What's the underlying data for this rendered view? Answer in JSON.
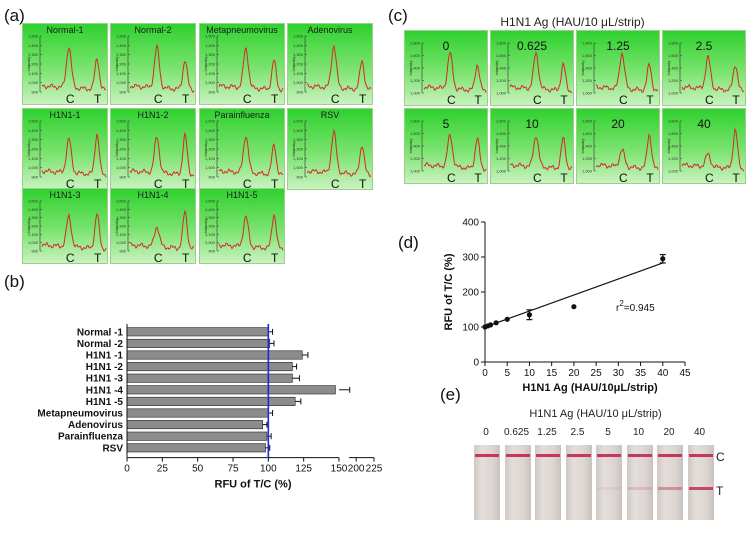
{
  "panel_a": {
    "letter": "(a)",
    "tiles": [
      {
        "title": "Normal-1",
        "c": 0.85,
        "t": 0.65
      },
      {
        "title": "Normal-2",
        "c": 0.85,
        "t": 0.62
      },
      {
        "title": "Metapneumovirus",
        "c": 0.82,
        "t": 0.6
      },
      {
        "title": "Adenovirus",
        "c": 0.88,
        "t": 0.6
      },
      {
        "title": "H1N1-1",
        "c": 0.7,
        "t": 0.85
      },
      {
        "title": "H1N1-2",
        "c": 0.75,
        "t": 0.82
      },
      {
        "title": "Parainfluenza",
        "c": 0.78,
        "t": 0.62
      },
      {
        "title": "RSV",
        "c": 0.85,
        "t": 0.62
      },
      {
        "title": "H1N1-3",
        "c": 0.72,
        "t": 0.82
      },
      {
        "title": "H1N1-4",
        "c": 0.48,
        "t": 0.88
      },
      {
        "title": "H1N1-5",
        "c": 0.72,
        "t": 0.82
      }
    ],
    "yticks": [
      "1,500",
      "1,400",
      "1,300",
      "1,200",
      "1,100",
      "1,000",
      "900"
    ],
    "ylabel": "Intensity",
    "c_label": "C",
    "t_label": "T"
  },
  "panel_b": {
    "letter": "(b)",
    "chart_data": {
      "type": "bar",
      "orientation": "horizontal",
      "categories": [
        "Normal -1",
        "Normal -2",
        "H1N1 -1",
        "H1N1 -2",
        "H1N1 -3",
        "H1N1 -4",
        "H1N1 -5",
        "Metapneumovirus",
        "Adenovirus",
        "Parainfluenza",
        "RSV"
      ],
      "values": [
        100,
        101,
        124,
        117,
        117,
        185,
        119,
        100,
        96,
        99,
        98
      ],
      "errors": [
        3,
        3,
        4,
        3,
        5,
        6,
        4,
        3,
        3,
        3,
        3
      ],
      "reference_line": 100,
      "reference_color": "#1f2bd6",
      "bar_color": "#8c8c8c",
      "xlabel": "RFU of T/C (%)",
      "xticks": [
        "0",
        "25",
        "50",
        "75",
        "100",
        "125",
        "150",
        "200",
        "225"
      ],
      "axis_break": [
        150,
        190
      ]
    }
  },
  "panel_c": {
    "letter": "(c)",
    "title": "H1N1 Ag (HAU/10 μL/strip)",
    "tiles": [
      {
        "num": "0",
        "c": 0.85,
        "t": 0.62
      },
      {
        "num": "0.625",
        "c": 0.85,
        "t": 0.62
      },
      {
        "num": "1.25",
        "c": 0.85,
        "t": 0.62
      },
      {
        "num": "2.5",
        "c": 0.75,
        "t": 0.62
      },
      {
        "num": "5",
        "c": 0.75,
        "t": 0.72
      },
      {
        "num": "10",
        "c": 0.75,
        "t": 0.72
      },
      {
        "num": "20",
        "c": 0.4,
        "t": 0.82
      },
      {
        "num": "40",
        "c": 0.3,
        "t": 0.92
      }
    ],
    "yticks": [
      "1,800",
      "1,600",
      "1,400",
      "1,200",
      "1,000"
    ],
    "ylabel": "Intensity",
    "c_label": "C",
    "t_label": "T"
  },
  "panel_d": {
    "letter": "(d)",
    "chart_data": {
      "type": "scatter",
      "x": [
        0,
        0.625,
        1.25,
        2.5,
        5,
        10,
        20,
        40
      ],
      "y": [
        100,
        103,
        106,
        112,
        122,
        135,
        158,
        295
      ],
      "errors": [
        3,
        3,
        3,
        4,
        4,
        14,
        3,
        12
      ],
      "fit_line": {
        "x": [
          0,
          40
        ],
        "y": [
          100,
          283
        ]
      },
      "xlabel": "H1N1 Ag (HAU/10μL/strip)",
      "ylabel": "RFU of T/C (%)",
      "xlim": [
        0,
        45
      ],
      "ylim": [
        0,
        400
      ],
      "xticks": [
        "0",
        "5",
        "10",
        "15",
        "20",
        "25",
        "30",
        "35",
        "40",
        "45"
      ],
      "yticks": [
        "0",
        "100",
        "200",
        "300",
        "400"
      ],
      "annotation_base": "r",
      "annotation_exp": "2",
      "annotation_value": "=0.945"
    }
  },
  "panel_e": {
    "letter": "(e)",
    "title": "H1N1 Ag (HAU/10 μL/strip)",
    "strips": [
      {
        "label": "0",
        "t": 0.0
      },
      {
        "label": "0.625",
        "t": 0.0
      },
      {
        "label": "1.25",
        "t": 0.0
      },
      {
        "label": "2.5",
        "t": 0.0
      },
      {
        "label": "5",
        "t": 0.08
      },
      {
        "label": "10",
        "t": 0.2
      },
      {
        "label": "20",
        "t": 0.45
      },
      {
        "label": "40",
        "t": 0.9
      }
    ],
    "c_label": "C",
    "t_label": "T"
  }
}
